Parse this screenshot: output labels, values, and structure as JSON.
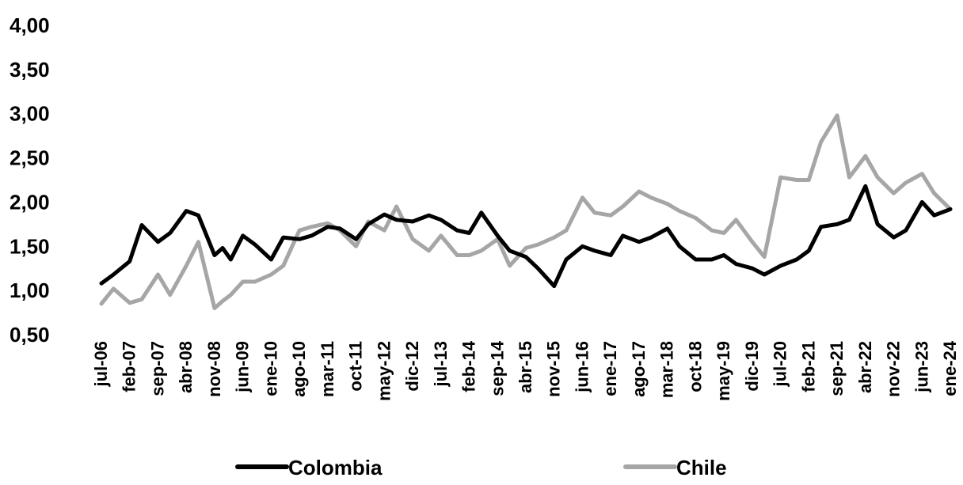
{
  "chart_data": {
    "type": "line",
    "title": "",
    "xlabel": "",
    "ylabel": "",
    "ylim": [
      0.5,
      4.0
    ],
    "y_ticks": [
      "0,50",
      "1,00",
      "1,50",
      "2,00",
      "2,50",
      "3,00",
      "3,50",
      "4,00"
    ],
    "x_ticks": [
      "jul-06",
      "feb-07",
      "sep-07",
      "abr-08",
      "nov-08",
      "jun-09",
      "ene-10",
      "ago-10",
      "mar-11",
      "oct-11",
      "may-12",
      "dic-12",
      "jul-13",
      "feb-14",
      "sep-14",
      "abr-15",
      "nov-15",
      "jun-16",
      "ene-17",
      "ago-17",
      "mar-18",
      "oct-18",
      "may-19",
      "dic-19",
      "jul-20",
      "feb-21",
      "sep-21",
      "abr-22",
      "nov-22",
      "jun-23",
      "ene-24"
    ],
    "grid": false,
    "legend_position": "bottom",
    "series": [
      {
        "name": "Colombia",
        "color": "#000000",
        "points": [
          [
            "jul-06",
            1.08
          ],
          [
            "oct-06",
            1.18
          ],
          [
            "feb-07",
            1.33
          ],
          [
            "may-07",
            1.74
          ],
          [
            "sep-07",
            1.55
          ],
          [
            "dic-07",
            1.65
          ],
          [
            "abr-08",
            1.9
          ],
          [
            "jul-08",
            1.85
          ],
          [
            "nov-08",
            1.4
          ],
          [
            "ene-09",
            1.48
          ],
          [
            "mar-09",
            1.35
          ],
          [
            "jun-09",
            1.62
          ],
          [
            "sep-09",
            1.52
          ],
          [
            "ene-10",
            1.35
          ],
          [
            "abr-10",
            1.6
          ],
          [
            "ago-10",
            1.58
          ],
          [
            "nov-10",
            1.62
          ],
          [
            "mar-11",
            1.72
          ],
          [
            "jun-11",
            1.7
          ],
          [
            "oct-11",
            1.58
          ],
          [
            "ene-12",
            1.75
          ],
          [
            "may-12",
            1.86
          ],
          [
            "ago-12",
            1.8
          ],
          [
            "dic-12",
            1.78
          ],
          [
            "abr-13",
            1.85
          ],
          [
            "jul-13",
            1.8
          ],
          [
            "nov-13",
            1.68
          ],
          [
            "feb-14",
            1.65
          ],
          [
            "may-14",
            1.88
          ],
          [
            "sep-14",
            1.62
          ],
          [
            "dic-14",
            1.45
          ],
          [
            "abr-15",
            1.38
          ],
          [
            "jul-15",
            1.25
          ],
          [
            "nov-15",
            1.05
          ],
          [
            "feb-16",
            1.35
          ],
          [
            "jun-16",
            1.5
          ],
          [
            "sep-16",
            1.45
          ],
          [
            "ene-17",
            1.4
          ],
          [
            "abr-17",
            1.62
          ],
          [
            "ago-17",
            1.55
          ],
          [
            "nov-17",
            1.6
          ],
          [
            "mar-18",
            1.7
          ],
          [
            "jun-18",
            1.5
          ],
          [
            "oct-18",
            1.35
          ],
          [
            "feb-19",
            1.35
          ],
          [
            "may-19",
            1.4
          ],
          [
            "ago-19",
            1.3
          ],
          [
            "dic-19",
            1.25
          ],
          [
            "mar-20",
            1.18
          ],
          [
            "jul-20",
            1.28
          ],
          [
            "nov-20",
            1.35
          ],
          [
            "feb-21",
            1.45
          ],
          [
            "may-21",
            1.72
          ],
          [
            "sep-21",
            1.75
          ],
          [
            "dic-21",
            1.8
          ],
          [
            "abr-22",
            2.18
          ],
          [
            "jul-22",
            1.75
          ],
          [
            "nov-22",
            1.6
          ],
          [
            "feb-23",
            1.68
          ],
          [
            "jun-23",
            2.0
          ],
          [
            "sep-23",
            1.85
          ],
          [
            "ene-24",
            1.92
          ]
        ]
      },
      {
        "name": "Chile",
        "color": "#a6a6a6",
        "points": [
          [
            "jul-06",
            0.85
          ],
          [
            "oct-06",
            1.02
          ],
          [
            "feb-07",
            0.86
          ],
          [
            "may-07",
            0.9
          ],
          [
            "sep-07",
            1.18
          ],
          [
            "dic-07",
            0.95
          ],
          [
            "abr-08",
            1.28
          ],
          [
            "jul-08",
            1.55
          ],
          [
            "nov-08",
            0.8
          ],
          [
            "ene-09",
            0.88
          ],
          [
            "mar-09",
            0.95
          ],
          [
            "jun-09",
            1.1
          ],
          [
            "sep-09",
            1.1
          ],
          [
            "ene-10",
            1.18
          ],
          [
            "abr-10",
            1.28
          ],
          [
            "ago-10",
            1.68
          ],
          [
            "nov-10",
            1.72
          ],
          [
            "mar-11",
            1.76
          ],
          [
            "jun-11",
            1.68
          ],
          [
            "oct-11",
            1.5
          ],
          [
            "ene-12",
            1.78
          ],
          [
            "may-12",
            1.68
          ],
          [
            "ago-12",
            1.95
          ],
          [
            "dic-12",
            1.58
          ],
          [
            "abr-13",
            1.45
          ],
          [
            "jul-13",
            1.62
          ],
          [
            "nov-13",
            1.4
          ],
          [
            "feb-14",
            1.4
          ],
          [
            "may-14",
            1.45
          ],
          [
            "sep-14",
            1.58
          ],
          [
            "dic-14",
            1.28
          ],
          [
            "abr-15",
            1.48
          ],
          [
            "jul-15",
            1.52
          ],
          [
            "nov-15",
            1.6
          ],
          [
            "feb-16",
            1.68
          ],
          [
            "jun-16",
            2.05
          ],
          [
            "sep-16",
            1.88
          ],
          [
            "ene-17",
            1.85
          ],
          [
            "abr-17",
            1.95
          ],
          [
            "ago-17",
            2.12
          ],
          [
            "nov-17",
            2.05
          ],
          [
            "mar-18",
            1.98
          ],
          [
            "jun-18",
            1.9
          ],
          [
            "oct-18",
            1.82
          ],
          [
            "feb-19",
            1.68
          ],
          [
            "may-19",
            1.65
          ],
          [
            "ago-19",
            1.8
          ],
          [
            "dic-19",
            1.55
          ],
          [
            "mar-20",
            1.38
          ],
          [
            "jul-20",
            2.28
          ],
          [
            "nov-20",
            2.25
          ],
          [
            "feb-21",
            2.25
          ],
          [
            "may-21",
            2.68
          ],
          [
            "sep-21",
            2.98
          ],
          [
            "dic-21",
            2.28
          ],
          [
            "abr-22",
            2.52
          ],
          [
            "jul-22",
            2.28
          ],
          [
            "nov-22",
            2.1
          ],
          [
            "feb-23",
            2.22
          ],
          [
            "jun-23",
            2.32
          ],
          [
            "sep-23",
            2.1
          ],
          [
            "ene-24",
            1.92
          ]
        ]
      }
    ]
  }
}
